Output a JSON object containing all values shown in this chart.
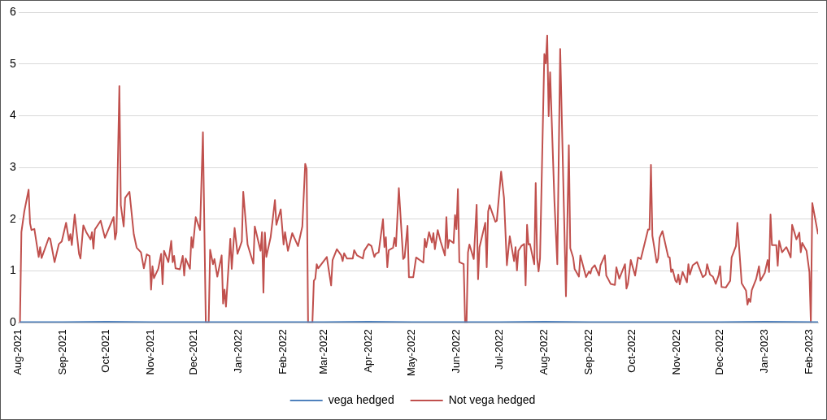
{
  "chart_data": {
    "type": "line",
    "legend": "bottom",
    "grid": "y",
    "marker": "none",
    "line_style": "solid",
    "xlim": [
      "2021-08-01",
      "2023-02-07"
    ],
    "xticks": [
      {
        "value": "2021-08-01",
        "label": "Aug-2021"
      },
      {
        "value": "2021-09-01",
        "label": "Sep-2021"
      },
      {
        "value": "2021-10-01",
        "label": "Oct-2021"
      },
      {
        "value": "2021-11-01",
        "label": "Nov-2021"
      },
      {
        "value": "2021-12-01",
        "label": "Dec-2021"
      },
      {
        "value": "2022-01-01",
        "label": "Jan-2022"
      },
      {
        "value": "2022-02-01",
        "label": "Feb-2022"
      },
      {
        "value": "2022-03-01",
        "label": "Mar-2022"
      },
      {
        "value": "2022-04-01",
        "label": "Apr-2022"
      },
      {
        "value": "2022-05-01",
        "label": "May-2022"
      },
      {
        "value": "2022-06-01",
        "label": "Jun-2022"
      },
      {
        "value": "2022-07-01",
        "label": "Jul-2022"
      },
      {
        "value": "2022-08-01",
        "label": "Aug-2022"
      },
      {
        "value": "2022-09-01",
        "label": "Sep-2022"
      },
      {
        "value": "2022-10-01",
        "label": "Oct-2022"
      },
      {
        "value": "2022-11-01",
        "label": "Nov-2022"
      },
      {
        "value": "2022-12-01",
        "label": "Dec-2022"
      },
      {
        "value": "2023-01-01",
        "label": "Jan-2023"
      },
      {
        "value": "2023-02-01",
        "label": "Feb-2023"
      }
    ],
    "ylim": [
      0,
      6
    ],
    "yticks": [
      0,
      1,
      2,
      3,
      4,
      5,
      6
    ],
    "series": [
      {
        "name": "vega hedged",
        "color": "#4f81bd",
        "x": [
          "2021-08-02",
          "2021-09-01",
          "2021-10-01",
          "2021-11-01",
          "2021-12-01",
          "2022-01-01",
          "2022-02-01",
          "2022-03-01",
          "2022-04-01",
          "2022-05-01",
          "2022-06-01",
          "2022-07-01",
          "2022-08-01",
          "2022-09-01",
          "2022-10-01",
          "2022-11-01",
          "2022-12-01",
          "2023-01-01",
          "2023-02-07"
        ],
        "values": [
          0.01,
          0.01,
          0.02,
          0.01,
          0.01,
          0.01,
          0.01,
          0.01,
          0.02,
          0.01,
          0.01,
          0.01,
          0.02,
          0.01,
          0.01,
          0.01,
          0.01,
          0.02,
          0.01
        ]
      },
      {
        "name": "Not vega hedged",
        "color": "#c0504d",
        "x": [
          "2021-08-02",
          "2021-08-03",
          "2021-08-05",
          "2021-08-08",
          "2021-08-09",
          "2021-08-10",
          "2021-08-12",
          "2021-08-15",
          "2021-08-16",
          "2021-08-17",
          "2021-08-22",
          "2021-08-23",
          "2021-08-26",
          "2021-08-29",
          "2021-08-31",
          "2021-09-03",
          "2021-09-05",
          "2021-09-06",
          "2021-09-07",
          "2021-09-09",
          "2021-09-12",
          "2021-09-13",
          "2021-09-15",
          "2021-09-17",
          "2021-09-20",
          "2021-09-21",
          "2021-09-22",
          "2021-09-23",
          "2021-09-27",
          "2021-09-30",
          "2021-10-06",
          "2021-10-07",
          "2021-10-08",
          "2021-10-10",
          "2021-10-11",
          "2021-10-13",
          "2021-10-14",
          "2021-10-17",
          "2021-10-20",
          "2021-10-22",
          "2021-10-25",
          "2021-10-27",
          "2021-10-29",
          "2021-10-31",
          "2021-11-01",
          "2021-11-02",
          "2021-11-03",
          "2021-11-06",
          "2021-11-08",
          "2021-11-09",
          "2021-11-10",
          "2021-11-13",
          "2021-11-15",
          "2021-11-16",
          "2021-11-17",
          "2021-11-18",
          "2021-11-21",
          "2021-11-23",
          "2021-11-24",
          "2021-11-25",
          "2021-11-28",
          "2021-11-29",
          "2021-11-30",
          "2021-12-02",
          "2021-12-05",
          "2021-12-07",
          "2021-12-09",
          "2021-12-11",
          "2021-12-12",
          "2021-12-14",
          "2021-12-15",
          "2021-12-17",
          "2021-12-20",
          "2021-12-21",
          "2021-12-22",
          "2021-12-23",
          "2021-12-26",
          "2021-12-27",
          "2021-12-29",
          "2021-12-31",
          "2022-01-03",
          "2022-01-04",
          "2022-01-07",
          "2022-01-11",
          "2022-01-12",
          "2022-01-16",
          "2022-01-17",
          "2022-01-18",
          "2022-01-19",
          "2022-01-20",
          "2022-01-23",
          "2022-01-26",
          "2022-01-27",
          "2022-01-30",
          "2022-02-01",
          "2022-02-02",
          "2022-02-04",
          "2022-02-07",
          "2022-02-11",
          "2022-02-14",
          "2022-02-16",
          "2022-02-17",
          "2022-02-18",
          "2022-02-21",
          "2022-02-22",
          "2022-02-23",
          "2022-02-24",
          "2022-02-25",
          "2022-03-03",
          "2022-03-06",
          "2022-03-07",
          "2022-03-10",
          "2022-03-13",
          "2022-03-14",
          "2022-03-15",
          "2022-03-17",
          "2022-03-21",
          "2022-03-22",
          "2022-03-24",
          "2022-03-28",
          "2022-03-29",
          "2022-04-01",
          "2022-04-03",
          "2022-04-05",
          "2022-04-06",
          "2022-04-08",
          "2022-04-11",
          "2022-04-12",
          "2022-04-13",
          "2022-04-14",
          "2022-04-15",
          "2022-04-18",
          "2022-04-19",
          "2022-04-20",
          "2022-04-22",
          "2022-04-25",
          "2022-04-26",
          "2022-04-28",
          "2022-04-29",
          "2022-05-02",
          "2022-05-04",
          "2022-05-09",
          "2022-05-10",
          "2022-05-11",
          "2022-05-13",
          "2022-05-15",
          "2022-05-16",
          "2022-05-17",
          "2022-05-19",
          "2022-05-21",
          "2022-05-24",
          "2022-05-25",
          "2022-05-26",
          "2022-05-27",
          "2022-05-30",
          "2022-05-31",
          "2022-06-01",
          "2022-06-02",
          "2022-06-03",
          "2022-06-06",
          "2022-06-07",
          "2022-06-08",
          "2022-06-09",
          "2022-06-10",
          "2022-06-13",
          "2022-06-15",
          "2022-06-16",
          "2022-06-17",
          "2022-06-21",
          "2022-06-22",
          "2022-06-23",
          "2022-06-24",
          "2022-06-28",
          "2022-06-29",
          "2022-07-02",
          "2022-07-04",
          "2022-07-06",
          "2022-07-08",
          "2022-07-11",
          "2022-07-12",
          "2022-07-13",
          "2022-07-14",
          "2022-07-16",
          "2022-07-18",
          "2022-07-19",
          "2022-07-20",
          "2022-07-21",
          "2022-07-22",
          "2022-07-25",
          "2022-07-26",
          "2022-07-27",
          "2022-07-28",
          "2022-07-29",
          "2022-08-01",
          "2022-08-02",
          "2022-08-03",
          "2022-08-04",
          "2022-08-05",
          "2022-08-08",
          "2022-08-10",
          "2022-08-12",
          "2022-08-16",
          "2022-08-18",
          "2022-08-19",
          "2022-08-21",
          "2022-08-22",
          "2022-08-25",
          "2022-08-26",
          "2022-08-30",
          "2022-09-01",
          "2022-09-02",
          "2022-09-03",
          "2022-09-05",
          "2022-09-08",
          "2022-09-09",
          "2022-09-12",
          "2022-09-13",
          "2022-09-14",
          "2022-09-16",
          "2022-09-19",
          "2022-09-20",
          "2022-09-22",
          "2022-09-26",
          "2022-09-27",
          "2022-09-28",
          "2022-09-30",
          "2022-10-03",
          "2022-10-05",
          "2022-10-07",
          "2022-10-12",
          "2022-10-13",
          "2022-10-14",
          "2022-10-15",
          "2022-10-18",
          "2022-10-19",
          "2022-10-20",
          "2022-10-22",
          "2022-10-26",
          "2022-10-27",
          "2022-10-28",
          "2022-10-29",
          "2022-10-31",
          "2022-11-01",
          "2022-11-02",
          "2022-11-03",
          "2022-11-05",
          "2022-11-08",
          "2022-11-09",
          "2022-11-10",
          "2022-11-12",
          "2022-11-15",
          "2022-11-19",
          "2022-11-21",
          "2022-11-22",
          "2022-11-24",
          "2022-11-26",
          "2022-11-28",
          "2022-11-30",
          "2022-12-01",
          "2022-12-02",
          "2022-12-05",
          "2022-12-08",
          "2022-12-09",
          "2022-12-12",
          "2022-12-13",
          "2022-12-16",
          "2022-12-19",
          "2022-12-20",
          "2022-12-21",
          "2022-12-22",
          "2022-12-23",
          "2022-12-26",
          "2022-12-28",
          "2022-12-29",
          "2023-01-01",
          "2023-01-03",
          "2023-01-04",
          "2023-01-05",
          "2023-01-06",
          "2023-01-09",
          "2023-01-10",
          "2023-01-11",
          "2023-01-13",
          "2023-01-16",
          "2023-01-17",
          "2023-01-19",
          "2023-01-20",
          "2023-01-23",
          "2023-01-25",
          "2023-01-26",
          "2023-01-27",
          "2023-01-30",
          "2023-02-01",
          "2023-02-02",
          "2023-02-03",
          "2023-02-07"
        ],
        "values": [
          0,
          1.75,
          2.15,
          2.57,
          1.92,
          1.79,
          1.81,
          1.27,
          1.46,
          1.25,
          1.64,
          1.62,
          1.17,
          1.52,
          1.57,
          1.93,
          1.59,
          1.71,
          1.5,
          2.09,
          1.33,
          1.24,
          1.88,
          1.75,
          1.61,
          1.75,
          1.43,
          1.8,
          1.97,
          1.64,
          2.04,
          1.61,
          1.74,
          4.57,
          2.27,
          1.86,
          2.41,
          2.53,
          1.71,
          1.45,
          1.36,
          1.05,
          1.32,
          1.29,
          0.64,
          1.09,
          0.86,
          1.04,
          1.33,
          0.74,
          1.39,
          1.17,
          1.58,
          1.17,
          1.29,
          1.05,
          1.03,
          1.29,
          0.91,
          1.24,
          1.04,
          1.65,
          1.45,
          2.04,
          1.79,
          3.68,
          0,
          0,
          1.41,
          1.13,
          1.23,
          0.89,
          1.3,
          0.37,
          0.64,
          0.31,
          1.62,
          1.04,
          1.83,
          1.33,
          1.57,
          2.53,
          1.51,
          1.14,
          1.86,
          1.39,
          1.75,
          0.58,
          1.74,
          1.27,
          1.65,
          2.37,
          1.89,
          2.19,
          1.51,
          1.75,
          1.39,
          1.73,
          1.48,
          1.86,
          3.07,
          2.97,
          0,
          0,
          0.81,
          0.85,
          1.13,
          1.05,
          1.27,
          0.72,
          1.21,
          1.42,
          1.3,
          1.19,
          1.34,
          1.24,
          1.24,
          1.4,
          1.3,
          1.24,
          1.39,
          1.52,
          1.48,
          1.27,
          1.33,
          1.36,
          2.0,
          1.46,
          1.65,
          1.07,
          1.4,
          1.45,
          1.64,
          1.48,
          2.6,
          1.23,
          1.26,
          1.87,
          0.88,
          0.88,
          1.26,
          1.16,
          1.62,
          1.46,
          1.75,
          1.55,
          1.73,
          1.42,
          1.79,
          1.57,
          1.3,
          2.04,
          1.44,
          1.6,
          1.54,
          2.08,
          1.81,
          2.58,
          1.17,
          1.13,
          0,
          0,
          1.36,
          1.51,
          1.23,
          2.28,
          0.84,
          1.46,
          1.93,
          1.07,
          2.15,
          2.27,
          1.95,
          1.97,
          2.92,
          2.41,
          1.11,
          1.67,
          1.19,
          1.46,
          1.01,
          1.39,
          1.48,
          1.52,
          0.72,
          1.89,
          1.51,
          1.52,
          1.13,
          2.7,
          1.24,
          0.99,
          1.24,
          5.19,
          5.01,
          5.55,
          3.99,
          4.84,
          2.35,
          1.13,
          5.29,
          0.51,
          3.43,
          1.44,
          1.26,
          1.04,
          0.89,
          1.3,
          0.88,
          0.99,
          0.95,
          1.05,
          1.11,
          0.91,
          1.11,
          1.3,
          0.91,
          0.86,
          0.75,
          0.73,
          1.07,
          0.85,
          1.13,
          0.66,
          0.75,
          1.21,
          0.91,
          1.26,
          1.23,
          1.8,
          1.8,
          3.05,
          1.68,
          1.16,
          1.24,
          1.64,
          1.77,
          1.27,
          1.26,
          0.98,
          1.03,
          0.81,
          0.78,
          0.93,
          0.74,
          0.98,
          0.78,
          1.13,
          0.93,
          1.11,
          1.17,
          0.88,
          0.93,
          1.13,
          0.93,
          0.89,
          0.75,
          0.92,
          1.09,
          0.69,
          0.68,
          0.81,
          1.26,
          1.48,
          1.93,
          0.76,
          0.62,
          0.35,
          0.46,
          0.4,
          0.63,
          0.84,
          1.09,
          0.81,
          0.96,
          1.21,
          0.98,
          2.09,
          1.5,
          1.5,
          1.1,
          1.58,
          1.36,
          1.46,
          1.4,
          1.26,
          1.89,
          1.61,
          1.74,
          1.36,
          1.54,
          1.39,
          0.98,
          0,
          2.31,
          1.71
        ]
      }
    ]
  }
}
